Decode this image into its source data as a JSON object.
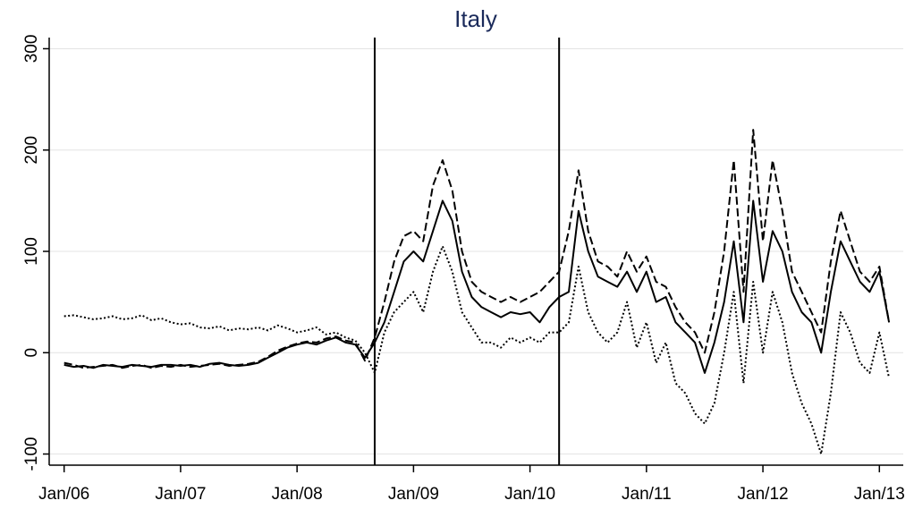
{
  "chart_data": {
    "type": "line",
    "title": "Italy",
    "x": [
      "2006-01",
      "2006-02",
      "2006-03",
      "2006-04",
      "2006-05",
      "2006-06",
      "2006-07",
      "2006-08",
      "2006-09",
      "2006-10",
      "2006-11",
      "2006-12",
      "2007-01",
      "2007-02",
      "2007-03",
      "2007-04",
      "2007-05",
      "2007-06",
      "2007-07",
      "2007-08",
      "2007-09",
      "2007-10",
      "2007-11",
      "2007-12",
      "2008-01",
      "2008-02",
      "2008-03",
      "2008-04",
      "2008-05",
      "2008-06",
      "2008-07",
      "2008-08",
      "2008-09",
      "2008-10",
      "2008-11",
      "2008-12",
      "2009-01",
      "2009-02",
      "2009-03",
      "2009-04",
      "2009-05",
      "2009-06",
      "2009-07",
      "2009-08",
      "2009-09",
      "2009-10",
      "2009-11",
      "2009-12",
      "2010-01",
      "2010-02",
      "2010-03",
      "2010-04",
      "2010-05",
      "2010-06",
      "2010-07",
      "2010-08",
      "2010-09",
      "2010-10",
      "2010-11",
      "2010-12",
      "2011-01",
      "2011-02",
      "2011-03",
      "2011-04",
      "2011-05",
      "2011-06",
      "2011-07",
      "2011-08",
      "2011-09",
      "2011-10",
      "2011-11",
      "2011-12",
      "2012-01",
      "2012-02",
      "2012-03",
      "2012-04",
      "2012-05",
      "2012-06",
      "2012-07",
      "2012-08",
      "2012-09",
      "2012-10",
      "2012-11",
      "2012-12",
      "2013-01",
      "2013-02"
    ],
    "series": [
      {
        "color": "#000000",
        "dash": "solid",
        "values": [
          -12,
          -14,
          -13,
          -15,
          -12,
          -13,
          -14,
          -12,
          -13,
          -14,
          -12,
          -12,
          -13,
          -12,
          -14,
          -11,
          -10,
          -12,
          -13,
          -12,
          -10,
          -5,
          0,
          5,
          8,
          10,
          8,
          12,
          15,
          10,
          8,
          -5,
          10,
          30,
          60,
          90,
          100,
          90,
          120,
          150,
          130,
          80,
          55,
          45,
          40,
          35,
          40,
          38,
          40,
          30,
          45,
          55,
          60,
          140,
          100,
          75,
          70,
          65,
          80,
          60,
          80,
          50,
          55,
          30,
          20,
          10,
          -20,
          10,
          50,
          110,
          30,
          150,
          70,
          120,
          100,
          60,
          40,
          30,
          0,
          60,
          110,
          90,
          70,
          60,
          80,
          30
        ]
      },
      {
        "color": "#000000",
        "dash": "dashed",
        "values": [
          -10,
          -12,
          -15,
          -14,
          -13,
          -12,
          -15,
          -13,
          -12,
          -15,
          -13,
          -14,
          -12,
          -14,
          -13,
          -12,
          -11,
          -13,
          -12,
          -11,
          -9,
          -4,
          2,
          6,
          9,
          11,
          10,
          14,
          16,
          12,
          10,
          -8,
          15,
          50,
          90,
          115,
          120,
          110,
          165,
          190,
          160,
          100,
          70,
          60,
          55,
          50,
          55,
          50,
          55,
          60,
          70,
          80,
          120,
          180,
          120,
          90,
          85,
          75,
          100,
          80,
          95,
          70,
          65,
          45,
          30,
          20,
          0,
          40,
          100,
          190,
          60,
          220,
          110,
          190,
          140,
          80,
          60,
          40,
          20,
          90,
          140,
          110,
          80,
          70,
          85,
          30
        ]
      },
      {
        "color": "#000000",
        "dash": "dotted",
        "values": [
          36,
          37,
          35,
          33,
          34,
          36,
          33,
          34,
          37,
          32,
          34,
          30,
          28,
          29,
          25,
          24,
          26,
          22,
          24,
          23,
          25,
          22,
          27,
          24,
          20,
          22,
          25,
          18,
          20,
          15,
          12,
          0,
          -20,
          20,
          40,
          50,
          60,
          40,
          80,
          105,
          80,
          40,
          25,
          10,
          10,
          5,
          15,
          10,
          15,
          10,
          20,
          20,
          30,
          85,
          40,
          20,
          10,
          20,
          50,
          5,
          30,
          -10,
          10,
          -30,
          -40,
          -60,
          -70,
          -50,
          0,
          60,
          -30,
          70,
          0,
          60,
          30,
          -20,
          -50,
          -70,
          -100,
          -40,
          40,
          20,
          -10,
          -20,
          20,
          -25
        ]
      }
    ],
    "vlines": [
      "2008-09",
      "2010-04"
    ],
    "xlim": [
      "2005-11",
      "2013-03"
    ],
    "xticks": [
      {
        "value": "2006-01",
        "label": "Jan/06"
      },
      {
        "value": "2007-01",
        "label": "Jan/07"
      },
      {
        "value": "2008-01",
        "label": "Jan/08"
      },
      {
        "value": "2009-01",
        "label": "Jan/09"
      },
      {
        "value": "2010-01",
        "label": "Jan/10"
      },
      {
        "value": "2011-01",
        "label": "Jan/11"
      },
      {
        "value": "2012-01",
        "label": "Jan/12"
      },
      {
        "value": "2013-01",
        "label": "Jan/13"
      }
    ],
    "ylim": [
      -111,
      311
    ],
    "yticks": [
      -100,
      0,
      100,
      200,
      300
    ],
    "grid": true
  }
}
